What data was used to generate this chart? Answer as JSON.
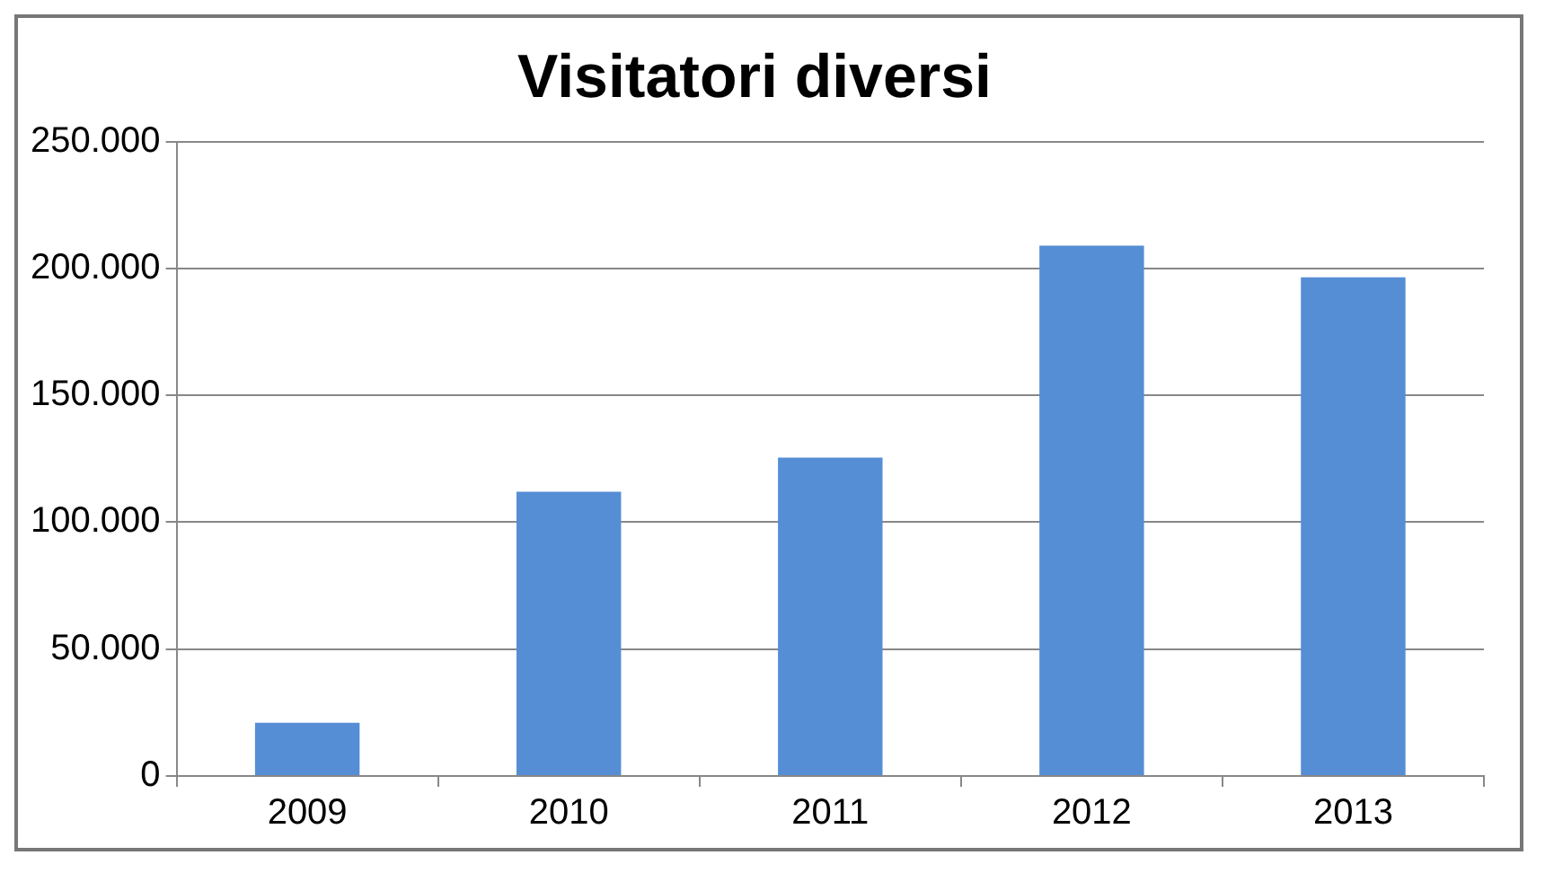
{
  "chart_data": {
    "type": "bar",
    "title": "Visitatori diversi",
    "categories": [
      "2009",
      "2010",
      "2011",
      "2012",
      "2013"
    ],
    "values": [
      21000,
      112000,
      125500,
      209000,
      196500
    ],
    "color": "#558ed5",
    "ylim": [
      0,
      250000
    ],
    "yticks": [
      {
        "value": 0,
        "label": "0"
      },
      {
        "value": 50000,
        "label": "50.000"
      },
      {
        "value": 100000,
        "label": "100.000"
      },
      {
        "value": 150000,
        "label": "150.000"
      },
      {
        "value": 200000,
        "label": "200.000"
      },
      {
        "value": 250000,
        "label": "250.000"
      }
    ],
    "grid": "y",
    "legend": false
  }
}
